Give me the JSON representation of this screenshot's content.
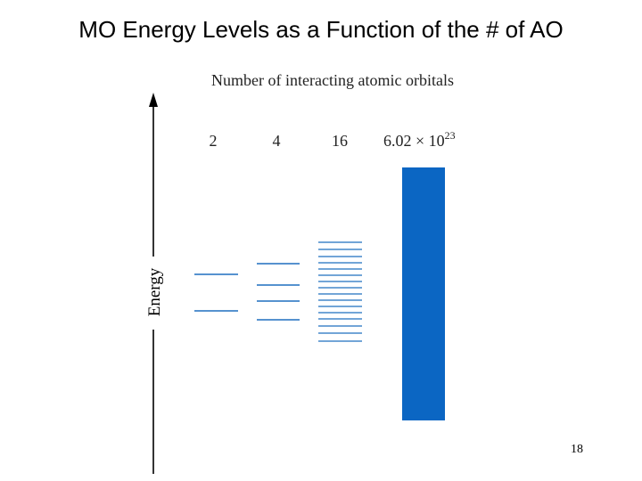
{
  "slide": {
    "title": "MO Energy Levels as a Function of the # of AO",
    "page_number": "18"
  },
  "diagram": {
    "header": "Number of interacting atomic orbitals",
    "axis_label": "Energy",
    "columns": [
      {
        "label": "2",
        "levels": 2
      },
      {
        "label": "4",
        "levels": 4
      },
      {
        "label": "16",
        "levels": 16
      },
      {
        "label_mantissa": "6.02 × 10",
        "label_exponent": "23",
        "band": true
      }
    ],
    "colors": {
      "level": "#1f6fbf",
      "band": "#0b66c3",
      "axis": "#000000"
    }
  }
}
